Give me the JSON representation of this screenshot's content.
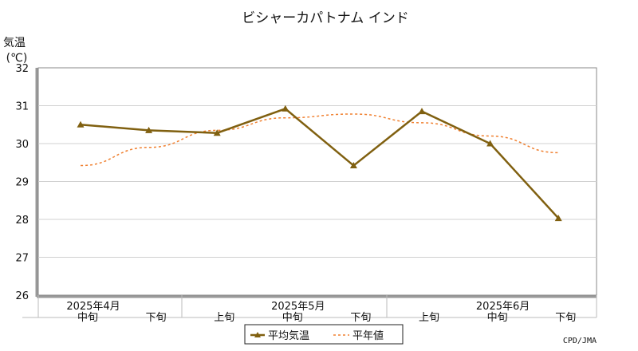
{
  "chart_data": {
    "type": "line",
    "title": "ビシャーカパトナム インド",
    "ylabel": [
      "気温",
      "(℃)"
    ],
    "ylim": [
      26,
      32
    ],
    "yticks": [
      26,
      27,
      28,
      29,
      30,
      31,
      32
    ],
    "categories": [
      "中旬",
      "下旬",
      "上旬",
      "中旬",
      "下旬",
      "上旬",
      "中旬",
      "下旬"
    ],
    "month_labels": [
      {
        "label": "2025年4月",
        "index": 0
      },
      {
        "label": "2025年5月",
        "index": 3
      },
      {
        "label": "2025年6月",
        "index": 6
      }
    ],
    "grid": true,
    "legend_position": "bottom-center",
    "series": [
      {
        "name": "平均気温",
        "color": "#806010",
        "style": "solid-triangle",
        "values": [
          30.5,
          30.35,
          30.28,
          30.92,
          29.42,
          30.85,
          30.0,
          28.03
        ]
      },
      {
        "name": "平年値",
        "color": "#f08030",
        "style": "dashed",
        "values": [
          29.42,
          29.9,
          30.35,
          30.68,
          30.78,
          30.55,
          30.2,
          29.76
        ]
      }
    ],
    "credit": "CPD/JMA"
  }
}
